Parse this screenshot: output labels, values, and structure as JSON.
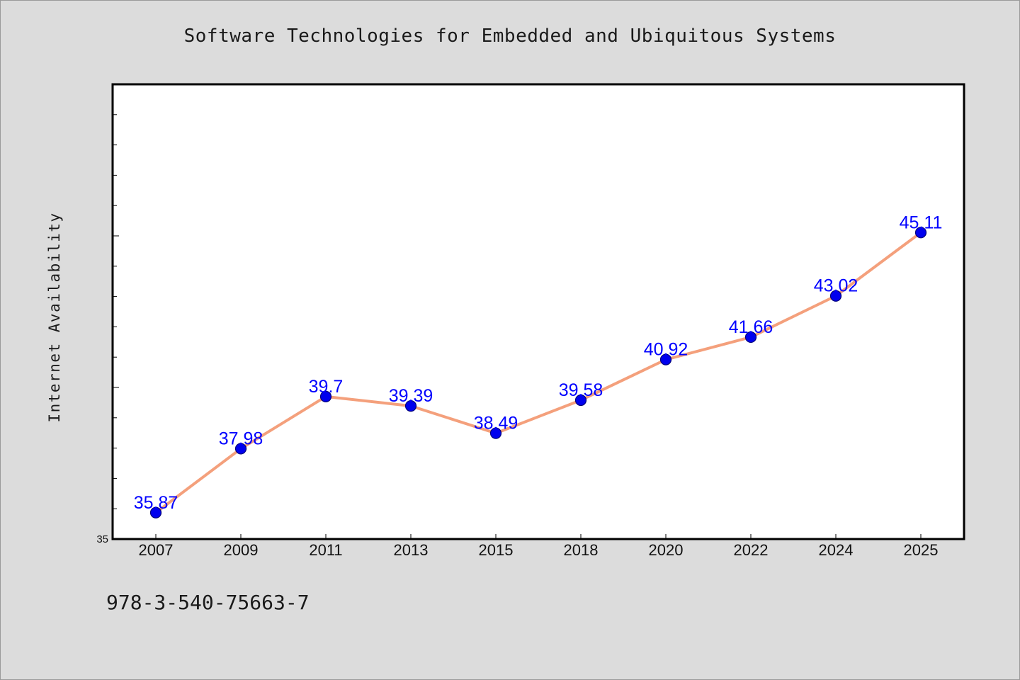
{
  "chart_data": {
    "type": "line",
    "title": "Software Technologies for Embedded and Ubiquitous Systems",
    "xlabel": "",
    "ylabel": "Internet Availability",
    "categories": [
      "2007",
      "2009",
      "2011",
      "2013",
      "2015",
      "2018",
      "2020",
      "2022",
      "2024",
      "2025"
    ],
    "series": [
      {
        "values": [
          35.87,
          37.98,
          39.7,
          39.39,
          38.49,
          39.58,
          40.92,
          41.66,
          43.02,
          45.11
        ],
        "value_labels": [
          "35.87",
          "37.98",
          "39.7",
          "39.39",
          "38.49",
          "39.58",
          "40.92",
          "41.66",
          "43.02",
          "45.11"
        ]
      }
    ],
    "ylim": [
      35,
      50
    ],
    "y_tick_labels": [
      "35"
    ],
    "y_minor_step": 1,
    "grid": false,
    "colors": {
      "line": "#f4a07c",
      "marker": "#0000ee",
      "marker_edge": "#00007a",
      "data_label": "#0000ff",
      "plot_bg": "#ffffff",
      "page_bg": "#dcdcdc"
    }
  },
  "footer": {
    "code": "978-3-540-75663-7"
  }
}
